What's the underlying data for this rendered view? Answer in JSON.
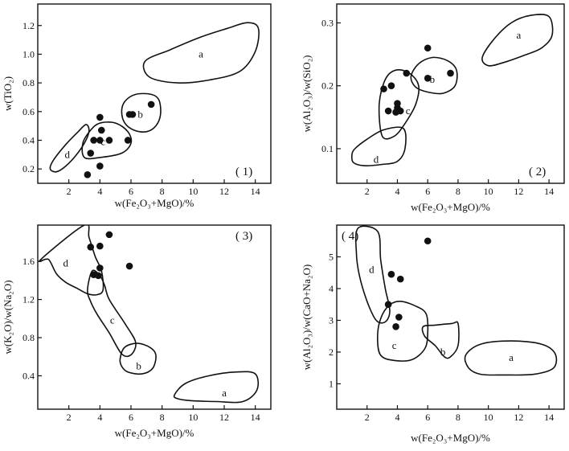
{
  "chart_data": [
    {
      "type": "scatter",
      "panel_label": "( 1)",
      "xlabel": "w(Fe₂O₃+MgO)/%",
      "ylabel": "w(TiO₂)",
      "xlim": [
        0,
        15
      ],
      "ylim": [
        0.1,
        1.35
      ],
      "xticks": [
        2,
        4,
        6,
        8,
        10,
        12,
        14
      ],
      "yticks": [
        0.2,
        0.4,
        0.6,
        0.8,
        1.0,
        1.2
      ],
      "ytick_labels": [
        "0.2",
        "0.4",
        "0.6",
        "0.8",
        "1.0",
        "1.2"
      ],
      "points": [
        [
          3.2,
          0.16
        ],
        [
          3.4,
          0.31
        ],
        [
          3.6,
          0.4
        ],
        [
          4.0,
          0.4
        ],
        [
          4.0,
          0.56
        ],
        [
          4.0,
          0.22
        ],
        [
          4.1,
          0.47
        ],
        [
          4.6,
          0.4
        ],
        [
          5.8,
          0.4
        ],
        [
          5.9,
          0.58
        ],
        [
          6.1,
          0.58
        ],
        [
          7.3,
          0.65
        ]
      ],
      "regions": [
        {
          "label": "a",
          "outline": [
            [
              6.9,
              0.95
            ],
            [
              8.5,
              1.03
            ],
            [
              10.5,
              1.12
            ],
            [
              12.2,
              1.18
            ],
            [
              13.5,
              1.22
            ],
            [
              14.2,
              1.18
            ],
            [
              14.0,
              1.02
            ],
            [
              13.0,
              0.88
            ],
            [
              11.0,
              0.82
            ],
            [
              9.0,
              0.8
            ],
            [
              7.2,
              0.84
            ]
          ]
        },
        {
          "label": "b",
          "outline": [
            [
              5.4,
              0.6
            ],
            [
              5.6,
              0.67
            ],
            [
              6.3,
              0.72
            ],
            [
              7.3,
              0.72
            ],
            [
              7.8,
              0.68
            ],
            [
              7.9,
              0.58
            ],
            [
              7.6,
              0.5
            ],
            [
              7.0,
              0.46
            ],
            [
              6.2,
              0.47
            ],
            [
              5.6,
              0.52
            ]
          ]
        },
        {
          "label": "c",
          "outline": [
            [
              3.0,
              0.28
            ],
            [
              2.9,
              0.38
            ],
            [
              3.4,
              0.47
            ],
            [
              4.0,
              0.52
            ],
            [
              5.0,
              0.52
            ],
            [
              5.8,
              0.46
            ],
            [
              6.0,
              0.38
            ],
            [
              5.4,
              0.31
            ],
            [
              4.0,
              0.28
            ]
          ]
        },
        {
          "label": "d",
          "outline": [
            [
              0.8,
              0.2
            ],
            [
              1.0,
              0.26
            ],
            [
              1.8,
              0.37
            ],
            [
              2.6,
              0.46
            ],
            [
              3.1,
              0.51
            ],
            [
              3.3,
              0.47
            ],
            [
              3.1,
              0.4
            ],
            [
              2.5,
              0.3
            ],
            [
              1.8,
              0.22
            ],
            [
              1.2,
              0.18
            ]
          ]
        }
      ],
      "region_label_pos": {
        "a": [
          10.5,
          1.0
        ],
        "b": [
          6.6,
          0.58
        ],
        "c": [
          4.2,
          0.39
        ],
        "d": [
          1.9,
          0.3
        ]
      }
    },
    {
      "type": "scatter",
      "panel_label": "( 2)",
      "xlabel": "w(Fe₂O₃+MgO)/%",
      "ylabel": "w(Al₂O₃)/w(SiO₂)",
      "xlim": [
        0,
        15
      ],
      "ylim": [
        0.045,
        0.33
      ],
      "xticks": [
        2,
        4,
        6,
        8,
        10,
        12,
        14
      ],
      "yticks": [
        0.1,
        0.2,
        0.3
      ],
      "ytick_labels": [
        "0.1",
        "0.2",
        "0.3"
      ],
      "points": [
        [
          3.1,
          0.195
        ],
        [
          3.4,
          0.16
        ],
        [
          3.6,
          0.2
        ],
        [
          3.9,
          0.158
        ],
        [
          4.0,
          0.165
        ],
        [
          4.0,
          0.172
        ],
        [
          4.2,
          0.16
        ],
        [
          4.6,
          0.22
        ],
        [
          6.0,
          0.26
        ],
        [
          6.0,
          0.212
        ],
        [
          7.5,
          0.22
        ]
      ],
      "regions": [
        {
          "label": "a",
          "outline": [
            [
              9.6,
              0.245
            ],
            [
              10.4,
              0.275
            ],
            [
              11.5,
              0.3
            ],
            [
              12.8,
              0.312
            ],
            [
              14.0,
              0.31
            ],
            [
              14.2,
              0.28
            ],
            [
              13.5,
              0.26
            ],
            [
              12.3,
              0.248
            ],
            [
              11.0,
              0.237
            ],
            [
              10.0,
              0.232
            ]
          ]
        },
        {
          "label": "b",
          "outline": [
            [
              4.9,
              0.215
            ],
            [
              5.4,
              0.235
            ],
            [
              6.3,
              0.245
            ],
            [
              7.3,
              0.24
            ],
            [
              7.9,
              0.225
            ],
            [
              7.8,
              0.2
            ],
            [
              7.0,
              0.188
            ],
            [
              6.0,
              0.19
            ],
            [
              5.2,
              0.198
            ]
          ]
        },
        {
          "label": "c",
          "outline": [
            [
              3.0,
              0.12
            ],
            [
              2.8,
              0.17
            ],
            [
              3.2,
              0.21
            ],
            [
              3.9,
              0.225
            ],
            [
              4.8,
              0.22
            ],
            [
              5.4,
              0.2
            ],
            [
              5.2,
              0.17
            ],
            [
              4.5,
              0.14
            ],
            [
              3.8,
              0.12
            ]
          ]
        },
        {
          "label": "d",
          "outline": [
            [
              1.0,
              0.09
            ],
            [
              1.2,
              0.1
            ],
            [
              2.0,
              0.115
            ],
            [
              3.1,
              0.13
            ],
            [
              4.4,
              0.132
            ],
            [
              4.5,
              0.1
            ],
            [
              4.0,
              0.08
            ],
            [
              3.0,
              0.075
            ],
            [
              1.8,
              0.073
            ],
            [
              1.1,
              0.078
            ]
          ]
        }
      ],
      "region_label_pos": {
        "a": [
          12.0,
          0.28
        ],
        "b": [
          6.3,
          0.21
        ],
        "c": [
          4.7,
          0.16
        ],
        "d": [
          2.6,
          0.083
        ]
      }
    },
    {
      "type": "scatter",
      "panel_label": "( 3)",
      "xlabel": "w(Fe₂O₃+MgO)/%",
      "ylabel": "w(K₂O)/w(Na₂O)",
      "xlim": [
        0,
        15
      ],
      "ylim": [
        0.05,
        1.98
      ],
      "xticks": [
        2,
        4,
        6,
        8,
        10,
        12,
        14
      ],
      "yticks": [
        0.4,
        0.8,
        1.2,
        1.6
      ],
      "ytick_labels": [
        "0.4",
        "0.8",
        "1.2",
        "1.6"
      ],
      "points": [
        [
          3.4,
          1.75
        ],
        [
          3.6,
          1.46
        ],
        [
          3.9,
          1.45
        ],
        [
          4.0,
          1.53
        ],
        [
          4.0,
          1.76
        ],
        [
          4.6,
          1.88
        ],
        [
          5.9,
          1.55
        ]
      ],
      "regions": [
        {
          "label": "a",
          "outline": [
            [
              8.8,
              0.2
            ],
            [
              9.5,
              0.32
            ],
            [
              11.0,
              0.4
            ],
            [
              12.8,
              0.44
            ],
            [
              14.0,
              0.42
            ],
            [
              14.1,
              0.25
            ],
            [
              13.2,
              0.13
            ],
            [
              11.5,
              0.13
            ],
            [
              9.8,
              0.14
            ],
            [
              9.0,
              0.16
            ]
          ]
        },
        {
          "label": "b",
          "outline": [
            [
              5.3,
              0.58
            ],
            [
              5.6,
              0.7
            ],
            [
              6.4,
              0.74
            ],
            [
              7.2,
              0.7
            ],
            [
              7.6,
              0.62
            ],
            [
              7.4,
              0.48
            ],
            [
              6.7,
              0.42
            ],
            [
              5.8,
              0.44
            ],
            [
              5.4,
              0.5
            ]
          ]
        },
        {
          "label": "c",
          "outline": [
            [
              3.2,
              1.3
            ],
            [
              3.5,
              1.5
            ],
            [
              4.0,
              1.45
            ],
            [
              4.3,
              1.35
            ],
            [
              4.6,
              1.2
            ],
            [
              5.6,
              0.95
            ],
            [
              6.3,
              0.75
            ],
            [
              6.0,
              0.62
            ],
            [
              5.4,
              0.63
            ],
            [
              4.6,
              0.85
            ],
            [
              3.8,
              1.05
            ],
            [
              3.4,
              1.18
            ]
          ]
        },
        {
          "label": "d",
          "outline": [
            [
              0.2,
              1.62
            ],
            [
              0.7,
              1.62
            ],
            [
              1.2,
              1.47
            ],
            [
              1.8,
              1.38
            ],
            [
              2.5,
              1.32
            ],
            [
              3.2,
              1.26
            ],
            [
              3.8,
              1.25
            ],
            [
              4.2,
              1.3
            ],
            [
              4.1,
              1.5
            ],
            [
              3.7,
              1.65
            ],
            [
              3.3,
              1.85
            ],
            [
              3.0,
              1.98
            ]
          ]
        }
      ],
      "region_label_pos": {
        "a": [
          12.0,
          0.22
        ],
        "b": [
          6.5,
          0.5
        ],
        "c": [
          4.8,
          0.98
        ],
        "d": [
          1.8,
          1.58
        ]
      }
    },
    {
      "type": "scatter",
      "panel_label": "( 4)",
      "xlabel": "w(Fe₂O₃+MgO)/%",
      "ylabel": "w(Al₂O₃)/w(CaO+Na₂O)",
      "xlim": [
        0,
        15
      ],
      "ylim": [
        0.2,
        6.0
      ],
      "xticks": [
        2,
        4,
        6,
        8,
        10,
        12,
        14
      ],
      "yticks": [
        1,
        2,
        3,
        4,
        5
      ],
      "ytick_labels": [
        "1",
        "2",
        "3",
        "4",
        "5"
      ],
      "points": [
        [
          3.4,
          3.5
        ],
        [
          3.6,
          4.45
        ],
        [
          3.9,
          2.8
        ],
        [
          4.1,
          3.1
        ],
        [
          4.2,
          4.3
        ],
        [
          6.0,
          5.5
        ]
      ],
      "regions": [
        {
          "label": "a",
          "outline": [
            [
              8.5,
              1.9
            ],
            [
              9.5,
              2.25
            ],
            [
              11.5,
              2.35
            ],
            [
              13.5,
              2.25
            ],
            [
              14.4,
              1.95
            ],
            [
              14.3,
              1.5
            ],
            [
              13.0,
              1.3
            ],
            [
              11.0,
              1.28
            ],
            [
              9.5,
              1.3
            ],
            [
              8.7,
              1.5
            ]
          ]
        },
        {
          "label": "b",
          "outline": [
            [
              5.7,
              2.8
            ],
            [
              6.5,
              2.85
            ],
            [
              7.6,
              2.9
            ],
            [
              8.0,
              2.9
            ],
            [
              8.0,
              2.2
            ],
            [
              7.5,
              1.85
            ],
            [
              7.1,
              1.85
            ],
            [
              6.5,
              2.2
            ],
            [
              5.8,
              2.5
            ]
          ]
        },
        {
          "label": "c",
          "outline": [
            [
              2.7,
              2.3
            ],
            [
              2.8,
              2.9
            ],
            [
              3.3,
              3.4
            ],
            [
              4.1,
              3.6
            ],
            [
              5.2,
              3.45
            ],
            [
              5.9,
              3.2
            ],
            [
              6.0,
              2.6
            ],
            [
              5.8,
              2.1
            ],
            [
              4.9,
              1.75
            ],
            [
              3.6,
              1.75
            ],
            [
              2.9,
              1.9
            ]
          ]
        },
        {
          "label": "d",
          "outline": [
            [
              1.4,
              5.9
            ],
            [
              1.3,
              5.1
            ],
            [
              1.5,
              4.4
            ],
            [
              2.0,
              3.6
            ],
            [
              2.6,
              3.0
            ],
            [
              3.2,
              2.95
            ],
            [
              3.5,
              3.3
            ],
            [
              3.2,
              4.0
            ],
            [
              2.9,
              4.9
            ],
            [
              2.7,
              5.8
            ]
          ]
        }
      ],
      "region_label_pos": {
        "a": [
          11.5,
          1.82
        ],
        "b": [
          7.0,
          2.0
        ],
        "c": [
          3.8,
          2.2
        ],
        "d": [
          2.3,
          4.6
        ]
      }
    }
  ]
}
